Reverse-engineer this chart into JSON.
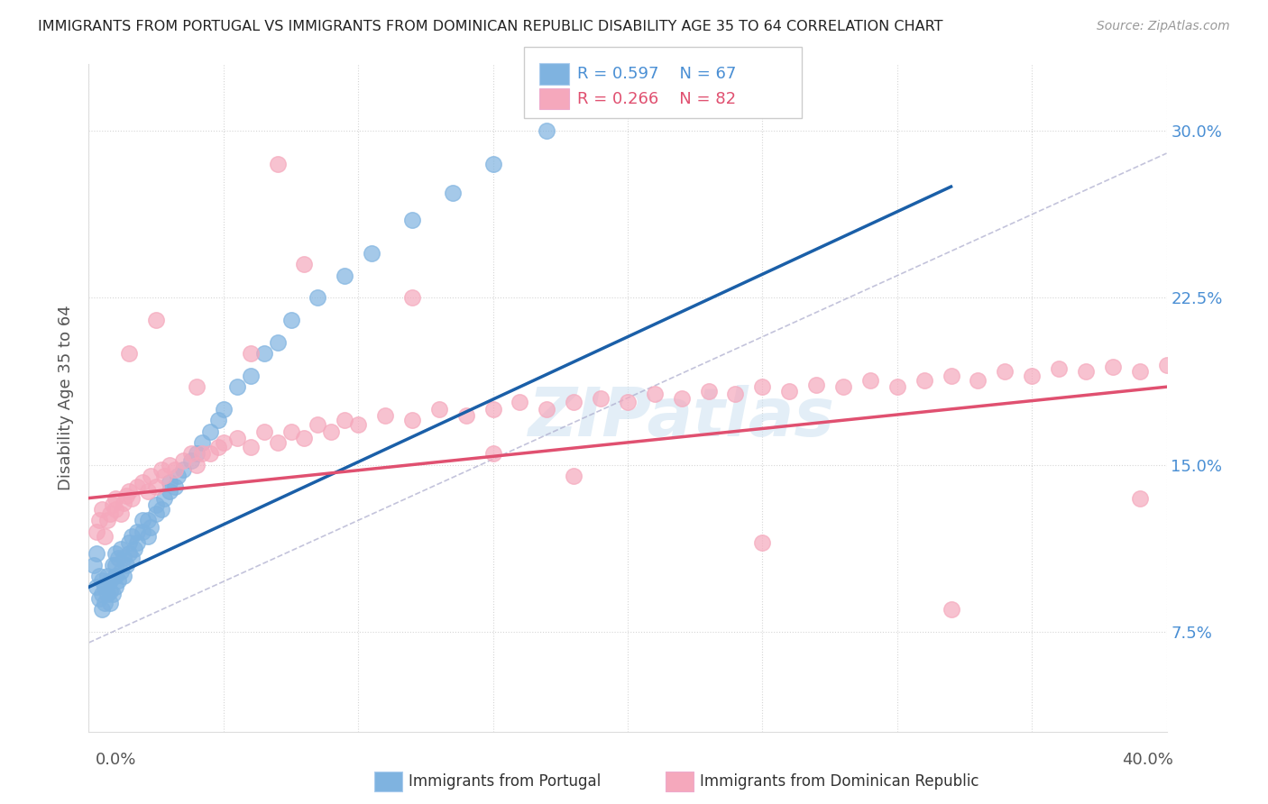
{
  "title": "IMMIGRANTS FROM PORTUGAL VS IMMIGRANTS FROM DOMINICAN REPUBLIC DISABILITY AGE 35 TO 64 CORRELATION CHART",
  "source": "Source: ZipAtlas.com",
  "ylabel": "Disability Age 35 to 64",
  "yticks": [
    0.075,
    0.15,
    0.225,
    0.3
  ],
  "ytick_labels": [
    "7.5%",
    "15.0%",
    "22.5%",
    "30.0%"
  ],
  "xlim": [
    0.0,
    0.4
  ],
  "ylim": [
    0.03,
    0.33
  ],
  "legend_r1": "R = 0.597",
  "legend_n1": "N = 67",
  "legend_r2": "R = 0.266",
  "legend_n2": "N = 82",
  "color_portugal": "#7fb3e0",
  "color_dr": "#f5a8bc",
  "color_portugal_line": "#1a5fa8",
  "color_dr_line": "#e05070",
  "watermark": "ZIPatlas",
  "portugal_x": [
    0.002,
    0.003,
    0.003,
    0.004,
    0.004,
    0.005,
    0.005,
    0.005,
    0.006,
    0.006,
    0.007,
    0.007,
    0.008,
    0.008,
    0.008,
    0.009,
    0.009,
    0.01,
    0.01,
    0.01,
    0.01,
    0.011,
    0.011,
    0.012,
    0.012,
    0.013,
    0.013,
    0.014,
    0.015,
    0.015,
    0.016,
    0.016,
    0.017,
    0.018,
    0.018,
    0.02,
    0.02,
    0.022,
    0.022,
    0.023,
    0.025,
    0.025,
    0.027,
    0.028,
    0.03,
    0.03,
    0.032,
    0.033,
    0.035,
    0.038,
    0.04,
    0.042,
    0.045,
    0.048,
    0.05,
    0.055,
    0.06,
    0.065,
    0.07,
    0.075,
    0.085,
    0.095,
    0.105,
    0.12,
    0.135,
    0.15,
    0.17
  ],
  "portugal_y": [
    0.105,
    0.095,
    0.11,
    0.1,
    0.09,
    0.085,
    0.092,
    0.098,
    0.088,
    0.095,
    0.092,
    0.1,
    0.088,
    0.093,
    0.098,
    0.092,
    0.105,
    0.095,
    0.1,
    0.105,
    0.11,
    0.098,
    0.108,
    0.102,
    0.112,
    0.1,
    0.108,
    0.105,
    0.11,
    0.115,
    0.108,
    0.118,
    0.112,
    0.115,
    0.12,
    0.12,
    0.125,
    0.118,
    0.125,
    0.122,
    0.128,
    0.132,
    0.13,
    0.135,
    0.138,
    0.142,
    0.14,
    0.145,
    0.148,
    0.152,
    0.155,
    0.16,
    0.165,
    0.17,
    0.175,
    0.185,
    0.19,
    0.2,
    0.205,
    0.215,
    0.225,
    0.235,
    0.245,
    0.26,
    0.272,
    0.285,
    0.3
  ],
  "dr_x": [
    0.003,
    0.004,
    0.005,
    0.006,
    0.007,
    0.008,
    0.009,
    0.01,
    0.01,
    0.012,
    0.013,
    0.014,
    0.015,
    0.016,
    0.018,
    0.02,
    0.022,
    0.023,
    0.025,
    0.027,
    0.028,
    0.03,
    0.032,
    0.035,
    0.038,
    0.04,
    0.042,
    0.045,
    0.048,
    0.05,
    0.055,
    0.06,
    0.065,
    0.07,
    0.075,
    0.08,
    0.085,
    0.09,
    0.095,
    0.1,
    0.11,
    0.12,
    0.13,
    0.14,
    0.15,
    0.16,
    0.17,
    0.18,
    0.19,
    0.2,
    0.21,
    0.22,
    0.23,
    0.24,
    0.25,
    0.26,
    0.27,
    0.28,
    0.29,
    0.3,
    0.31,
    0.32,
    0.33,
    0.34,
    0.35,
    0.36,
    0.37,
    0.38,
    0.39,
    0.4,
    0.015,
    0.025,
    0.04,
    0.06,
    0.08,
    0.12,
    0.18,
    0.25,
    0.32,
    0.39,
    0.07,
    0.15
  ],
  "dr_y": [
    0.12,
    0.125,
    0.13,
    0.118,
    0.125,
    0.128,
    0.132,
    0.13,
    0.135,
    0.128,
    0.133,
    0.136,
    0.138,
    0.135,
    0.14,
    0.142,
    0.138,
    0.145,
    0.14,
    0.148,
    0.145,
    0.15,
    0.148,
    0.152,
    0.155,
    0.15,
    0.155,
    0.155,
    0.158,
    0.16,
    0.162,
    0.158,
    0.165,
    0.16,
    0.165,
    0.162,
    0.168,
    0.165,
    0.17,
    0.168,
    0.172,
    0.17,
    0.175,
    0.172,
    0.175,
    0.178,
    0.175,
    0.178,
    0.18,
    0.178,
    0.182,
    0.18,
    0.183,
    0.182,
    0.185,
    0.183,
    0.186,
    0.185,
    0.188,
    0.185,
    0.188,
    0.19,
    0.188,
    0.192,
    0.19,
    0.193,
    0.192,
    0.194,
    0.192,
    0.195,
    0.2,
    0.215,
    0.185,
    0.2,
    0.24,
    0.225,
    0.145,
    0.115,
    0.085,
    0.135,
    0.285,
    0.155
  ]
}
